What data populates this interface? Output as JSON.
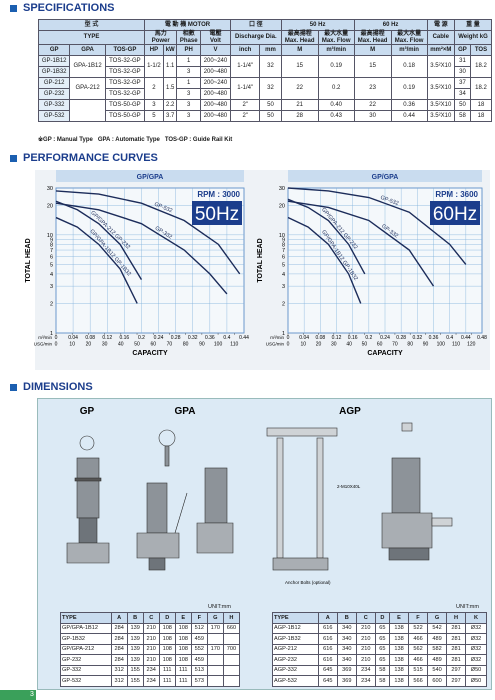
{
  "specifications": {
    "heading": "SPECIFICATIONS",
    "head": {
      "model_zh": "型 式",
      "motor": "電 動 機 MOTOR",
      "outlet_zh": "口 徑",
      "hz50": "50 Hz",
      "hz60": "60 Hz",
      "power_zh": "電 源",
      "weight_zh": "重 量",
      "type": "TYPE",
      "hp_zh": "馬力",
      "power": "Power",
      "phase_zh": "相數",
      "phase": "Phase",
      "volt_zh": "電壓",
      "volt": "Volt",
      "discharge": "Discharge Dia.",
      "head_zh": "最高揚程",
      "max_head": "Max. Head",
      "flow_zh": "最大水量",
      "max_flow": "Max. Flow",
      "cable": "Cable",
      "weight": "Weight kG"
    },
    "units": [
      "GP",
      "GPA",
      "TOS-GP",
      "HP",
      "kW",
      "PH",
      "V",
      "inch",
      "mm",
      "M",
      "m³/min",
      "M",
      "m³/min",
      "mm²×M",
      "GP",
      "TOS"
    ],
    "rows": [
      [
        "GP-1B12",
        "GPA-1B12",
        "TOS-32-GP",
        "1-1/2",
        "1.1",
        "1",
        "200~240",
        "1-1/4\"",
        "32",
        "15",
        "0.19",
        "15",
        "0.18",
        "3.5²X10",
        "31",
        "18.2"
      ],
      [
        "GP-1B32",
        "TOS-32-GP",
        "3",
        "200~480",
        "30"
      ],
      [
        "GP-212",
        "GPA-212",
        "TOS-32-GP",
        "2",
        "1.5",
        "1",
        "200~240",
        "1-1/4\"",
        "32",
        "22",
        "0.2",
        "23",
        "0.19",
        "3.5²X10",
        "37",
        "18.2"
      ],
      [
        "GP-232",
        "TOS-32-GP",
        "3",
        "200~480",
        "34"
      ],
      [
        "GP-332",
        "TOS-50-GP",
        "3",
        "2.2",
        "3",
        "200~480",
        "2\"",
        "50",
        "21",
        "0.40",
        "22",
        "0.36",
        "3.5²X10",
        "50",
        "18"
      ],
      [
        "GP-532",
        "TOS-50-GP",
        "5",
        "3.7",
        "3",
        "200~480",
        "2\"",
        "50",
        "28",
        "0.43",
        "30",
        "0.44",
        "3.5²X10",
        "58",
        "18"
      ]
    ],
    "note": "※GP : Manual Type   GPA : Automatic Type   TOS-GP : Guide Rail Kit"
  },
  "performance": {
    "heading": "PERFORMANCE CURVES",
    "charts": [
      {
        "type": "line",
        "title": "GP/GPA",
        "rpm": "RPM : 3000",
        "freq": "50Hz",
        "xlabel": "CAPACITY",
        "ylabel": "TOTAL HEAD",
        "x_unit": "m³/min",
        "x2_unit": "USG/min",
        "log_y": true,
        "color": "#1c2c5a",
        "grid": true,
        "xlim": [
          0,
          0.44
        ],
        "xticks": [
          0,
          0.04,
          0.08,
          0.12,
          0.16,
          0.2,
          0.24,
          0.28,
          0.32,
          0.36,
          0.4,
          0.44
        ],
        "x2lim": [
          0,
          116
        ],
        "x2ticks": [
          0,
          10,
          20,
          30,
          40,
          50,
          60,
          70,
          80,
          90,
          100,
          110
        ],
        "ylim": [
          1,
          30
        ],
        "yticks": [
          1,
          2,
          3,
          4,
          5,
          6,
          7,
          8,
          9,
          10,
          20,
          30
        ],
        "series": [
          {
            "name": "GP-532",
            "x": [
              0,
              0.1,
              0.2,
              0.3,
              0.38,
              0.43
            ],
            "values": [
              28,
              26,
              21,
              14,
              8,
              4
            ]
          },
          {
            "name": "GP-332",
            "x": [
              0,
              0.1,
              0.2,
              0.3,
              0.36,
              0.4
            ],
            "values": [
              21,
              18,
              13,
              7,
              4,
              2.5
            ]
          },
          {
            "name": "GP/GPA-212 GP-232",
            "x": [
              0,
              0.05,
              0.1,
              0.15,
              0.2
            ],
            "values": [
              22,
              18,
              13,
              8,
              3.5
            ]
          },
          {
            "name": "GP/GPA-1B12 GP-1B32",
            "x": [
              0,
              0.05,
              0.1,
              0.15,
              0.19
            ],
            "values": [
              15,
              12,
              8,
              4.5,
              2
            ]
          }
        ]
      },
      {
        "type": "line",
        "title": "GP/GPA",
        "rpm": "RPM : 3600",
        "freq": "60Hz",
        "xlabel": "CAPACITY",
        "ylabel": "TOTAL HEAD",
        "x_unit": "m³/min",
        "x2_unit": "USG/min",
        "log_y": true,
        "color": "#1c2c5a",
        "grid": true,
        "xlim": [
          0,
          0.48
        ],
        "xticks": [
          0,
          0.04,
          0.08,
          0.12,
          0.16,
          0.2,
          0.24,
          0.28,
          0.32,
          0.36,
          0.4,
          0.44,
          0.48
        ],
        "x2lim": [
          0,
          127
        ],
        "x2ticks": [
          0,
          10,
          20,
          30,
          40,
          50,
          60,
          70,
          80,
          90,
          100,
          110,
          120
        ],
        "ylim": [
          1,
          30
        ],
        "yticks": [
          1,
          2,
          3,
          4,
          5,
          6,
          7,
          8,
          9,
          10,
          20,
          30
        ],
        "series": [
          {
            "name": "GP-532",
            "x": [
              0,
              0.1,
              0.2,
              0.3,
              0.4,
              0.44
            ],
            "values": [
              30,
              28,
              24,
              17,
              8,
              5
            ]
          },
          {
            "name": "GP-332",
            "x": [
              0,
              0.1,
              0.2,
              0.3,
              0.36
            ],
            "values": [
              22,
              19,
              14,
              7,
              3
            ]
          },
          {
            "name": "GP/GPA-212 GP-232",
            "x": [
              0,
              0.05,
              0.1,
              0.15,
              0.19
            ],
            "values": [
              23,
              19,
              14,
              8,
              4
            ]
          },
          {
            "name": "GP/GPA-1B12 GP-1B32",
            "x": [
              0,
              0.05,
              0.1,
              0.15,
              0.18
            ],
            "values": [
              15,
              12,
              8,
              4,
              2
            ]
          }
        ]
      }
    ]
  },
  "dimensions": {
    "heading": "DIMENSIONS",
    "labels": [
      "GP",
      "GPA",
      "AGP"
    ],
    "unit": "UNIT:mm",
    "notes": [
      "2-M10X40L",
      "Anchor Bolts (optional)"
    ],
    "tables": [
      {
        "header": [
          "TYPE",
          "A",
          "B",
          "C",
          "D",
          "E",
          "F",
          "G",
          "H"
        ],
        "rows": [
          [
            "GP/GPA-1B12",
            "284",
            "139",
            "210",
            "108",
            "108",
            "512",
            "170",
            "660"
          ],
          [
            "GP-1B32",
            "284",
            "139",
            "210",
            "108",
            "108",
            "459"
          ],
          [
            "GP/GPA-212",
            "284",
            "139",
            "210",
            "108",
            "108",
            "552",
            "170",
            "700"
          ],
          [
            "GP-232",
            "284",
            "139",
            "210",
            "108",
            "108",
            "459"
          ],
          [
            "GP-332",
            "312",
            "155",
            "234",
            "111",
            "111",
            "513"
          ],
          [
            "GP-532",
            "312",
            "155",
            "234",
            "111",
            "111",
            "573"
          ]
        ]
      },
      {
        "header": [
          "TYPE",
          "A",
          "B",
          "C",
          "D",
          "E",
          "F",
          "G",
          "H",
          "K"
        ],
        "rows": [
          [
            "AGP-1B12",
            "616",
            "340",
            "210",
            "65",
            "138",
            "522",
            "542",
            "281",
            "Ø32"
          ],
          [
            "AGP-1B32",
            "616",
            "340",
            "210",
            "65",
            "138",
            "466",
            "489",
            "281",
            "Ø32"
          ],
          [
            "AGP-212",
            "616",
            "340",
            "210",
            "65",
            "138",
            "562",
            "582",
            "281",
            "Ø32"
          ],
          [
            "AGP-232",
            "616",
            "340",
            "210",
            "65",
            "138",
            "466",
            "489",
            "281",
            "Ø32"
          ],
          [
            "AGP-332",
            "645",
            "369",
            "234",
            "58",
            "138",
            "515",
            "540",
            "297",
            "Ø50"
          ],
          [
            "AGP-532",
            "645",
            "369",
            "234",
            "58",
            "138",
            "566",
            "600",
            "297",
            "Ø50"
          ]
        ]
      }
    ]
  },
  "page_number": "3"
}
